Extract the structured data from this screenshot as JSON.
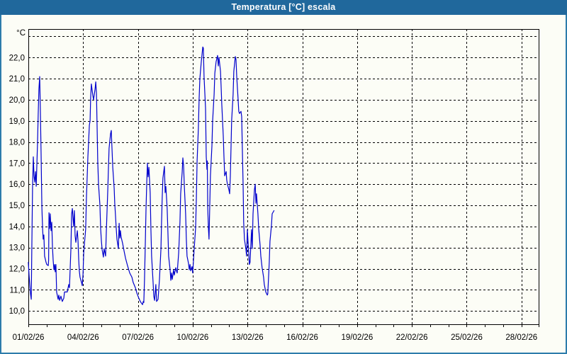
{
  "window": {
    "title": "Temperatura [°C] escala"
  },
  "colors": {
    "titlebar": "#20689c",
    "frame": "#2d7cab",
    "background": "#fcfdf6",
    "line": "#0000cc",
    "grid": "#000000",
    "axis": "#000000",
    "text": "#000000"
  },
  "chart_data": {
    "type": "line",
    "title": "Temperatura [°C] escala",
    "ylabel": "°C",
    "xlabel": "",
    "xlim": [
      1,
      28.94
    ],
    "ylim": [
      9.37,
      23.35
    ],
    "grid": "dashed",
    "legend": "none",
    "y_gridline_values": [
      10,
      11,
      12,
      13,
      14,
      15,
      16,
      17,
      18,
      19,
      20,
      21,
      22,
      23
    ],
    "y_ticks": [
      {
        "value": 10,
        "label": "10,0"
      },
      {
        "value": 11,
        "label": "11,0"
      },
      {
        "value": 12,
        "label": "12,0"
      },
      {
        "value": 13,
        "label": "13,0"
      },
      {
        "value": 14,
        "label": "14,0"
      },
      {
        "value": 15,
        "label": "15,0"
      },
      {
        "value": 16,
        "label": "16,0"
      },
      {
        "value": 17,
        "label": "17,0"
      },
      {
        "value": 18,
        "label": "18,0"
      },
      {
        "value": 19,
        "label": "19,0"
      },
      {
        "value": 20,
        "label": "20,0"
      },
      {
        "value": 21,
        "label": "21,0"
      },
      {
        "value": 22,
        "label": "22,0"
      }
    ],
    "x_ticks": [
      {
        "day": 1,
        "label": "01/02/26"
      },
      {
        "day": 4,
        "label": "04/02/26"
      },
      {
        "day": 7,
        "label": "07/02/26"
      },
      {
        "day": 10,
        "label": "10/02/26"
      },
      {
        "day": 13,
        "label": "13/02/26"
      },
      {
        "day": 16,
        "label": "16/02/26"
      },
      {
        "day": 19,
        "label": "19/02/26"
      },
      {
        "day": 22,
        "label": "22/02/26"
      },
      {
        "day": 25,
        "label": "25/02/26"
      },
      {
        "day": 28,
        "label": "28/02/26"
      }
    ],
    "x_minor_tick_days": [
      1,
      2,
      3,
      4,
      5,
      6,
      7,
      8,
      9,
      10,
      11,
      12,
      13,
      14,
      15,
      16,
      17,
      18,
      19,
      20,
      21,
      22,
      23,
      24,
      25,
      26,
      27,
      28
    ],
    "x_gridline_days": [
      4,
      7,
      10,
      13,
      16,
      19,
      22,
      25,
      28
    ],
    "series": [
      {
        "name": "Temperatura",
        "color": "#0000cc",
        "points": [
          [
            1.0,
            12.3
          ],
          [
            1.04,
            11.7
          ],
          [
            1.08,
            11.2
          ],
          [
            1.12,
            10.8
          ],
          [
            1.16,
            10.55
          ],
          [
            1.19,
            13.0
          ],
          [
            1.23,
            15.8
          ],
          [
            1.27,
            17.3
          ],
          [
            1.31,
            16.4
          ],
          [
            1.35,
            16.1
          ],
          [
            1.39,
            16.6
          ],
          [
            1.43,
            15.9
          ],
          [
            1.5,
            17.9
          ],
          [
            1.54,
            19.3
          ],
          [
            1.58,
            20.5
          ],
          [
            1.62,
            21.1
          ],
          [
            1.66,
            19.4
          ],
          [
            1.7,
            17.4
          ],
          [
            1.72,
            16.0
          ],
          [
            1.74,
            14.9
          ],
          [
            1.78,
            13.9
          ],
          [
            1.81,
            13.4
          ],
          [
            1.85,
            13.6
          ],
          [
            1.89,
            12.6
          ],
          [
            1.97,
            12.3
          ],
          [
            2.01,
            12.2
          ],
          [
            2.09,
            12.15
          ],
          [
            2.11,
            12.4
          ],
          [
            2.13,
            14.65
          ],
          [
            2.16,
            13.9
          ],
          [
            2.2,
            14.6
          ],
          [
            2.24,
            13.8
          ],
          [
            2.28,
            14.2
          ],
          [
            2.32,
            13.05
          ],
          [
            2.36,
            12.4
          ],
          [
            2.4,
            11.95
          ],
          [
            2.44,
            12.2
          ],
          [
            2.47,
            11.85
          ],
          [
            2.51,
            12.2
          ],
          [
            2.55,
            10.9
          ],
          [
            2.63,
            10.55
          ],
          [
            2.67,
            10.75
          ],
          [
            2.71,
            10.5
          ],
          [
            2.78,
            10.7
          ],
          [
            2.86,
            10.45
          ],
          [
            2.94,
            10.6
          ],
          [
            2.98,
            10.9
          ],
          [
            3.13,
            10.9
          ],
          [
            3.21,
            11.25
          ],
          [
            3.25,
            11.1
          ],
          [
            3.33,
            12.9
          ],
          [
            3.37,
            14.6
          ],
          [
            3.41,
            14.85
          ],
          [
            3.48,
            14.0
          ],
          [
            3.52,
            14.75
          ],
          [
            3.56,
            13.55
          ],
          [
            3.6,
            13.25
          ],
          [
            3.68,
            13.8
          ],
          [
            3.72,
            13.3
          ],
          [
            3.76,
            12.4
          ],
          [
            3.79,
            11.9
          ],
          [
            3.83,
            11.6
          ],
          [
            3.91,
            11.35
          ],
          [
            3.95,
            11.2
          ],
          [
            3.99,
            11.7
          ],
          [
            4.03,
            12.75
          ],
          [
            4.14,
            13.9
          ],
          [
            4.18,
            15.3
          ],
          [
            4.26,
            17.3
          ],
          [
            4.34,
            18.8
          ],
          [
            4.38,
            19.0
          ],
          [
            4.41,
            20.1
          ],
          [
            4.45,
            20.75
          ],
          [
            4.53,
            20.2
          ],
          [
            4.57,
            20.0
          ],
          [
            4.65,
            20.5
          ],
          [
            4.69,
            20.85
          ],
          [
            4.73,
            20.3
          ],
          [
            4.76,
            18.9
          ],
          [
            4.8,
            17.1
          ],
          [
            4.84,
            16.0
          ],
          [
            4.92,
            15.0
          ],
          [
            4.96,
            13.9
          ],
          [
            5.0,
            13.3
          ],
          [
            5.04,
            12.9
          ],
          [
            5.11,
            12.55
          ],
          [
            5.15,
            12.95
          ],
          [
            5.23,
            12.6
          ],
          [
            5.27,
            13.75
          ],
          [
            5.35,
            15.75
          ],
          [
            5.38,
            16.65
          ],
          [
            5.42,
            17.7
          ],
          [
            5.5,
            18.4
          ],
          [
            5.54,
            18.55
          ],
          [
            5.58,
            17.7
          ],
          [
            5.62,
            16.8
          ],
          [
            5.7,
            15.8
          ],
          [
            5.73,
            15.1
          ],
          [
            5.77,
            14.55
          ],
          [
            5.81,
            13.9
          ],
          [
            5.85,
            13.4
          ],
          [
            5.93,
            12.95
          ],
          [
            5.97,
            14.15
          ],
          [
            6.01,
            13.45
          ],
          [
            6.04,
            13.8
          ],
          [
            6.08,
            13.5
          ],
          [
            6.16,
            13.2
          ],
          [
            6.24,
            12.85
          ],
          [
            6.32,
            12.5
          ],
          [
            6.43,
            12.15
          ],
          [
            6.55,
            11.8
          ],
          [
            6.67,
            11.6
          ],
          [
            6.74,
            11.35
          ],
          [
            6.86,
            11.1
          ],
          [
            6.94,
            10.85
          ],
          [
            7.05,
            10.6
          ],
          [
            7.13,
            10.45
          ],
          [
            7.21,
            10.35
          ],
          [
            7.25,
            10.3
          ],
          [
            7.29,
            10.45
          ],
          [
            7.32,
            10.4
          ],
          [
            7.36,
            11.5
          ],
          [
            7.4,
            13.0
          ],
          [
            7.44,
            14.8
          ],
          [
            7.48,
            16.0
          ],
          [
            7.52,
            17.0
          ],
          [
            7.56,
            16.35
          ],
          [
            7.6,
            16.8
          ],
          [
            7.67,
            15.6
          ],
          [
            7.71,
            13.9
          ],
          [
            7.75,
            12.6
          ],
          [
            7.83,
            11.35
          ],
          [
            7.87,
            10.7
          ],
          [
            7.91,
            10.5
          ],
          [
            7.98,
            11.25
          ],
          [
            8.02,
            10.45
          ],
          [
            8.1,
            10.55
          ],
          [
            8.18,
            11.5
          ],
          [
            8.26,
            12.95
          ],
          [
            8.29,
            14.15
          ],
          [
            8.33,
            15.4
          ],
          [
            8.37,
            16.3
          ],
          [
            8.45,
            16.85
          ],
          [
            8.49,
            15.6
          ],
          [
            8.53,
            15.9
          ],
          [
            8.6,
            14.9
          ],
          [
            8.64,
            13.75
          ],
          [
            8.68,
            12.6
          ],
          [
            8.76,
            11.95
          ],
          [
            8.8,
            11.45
          ],
          [
            8.84,
            11.8
          ],
          [
            8.88,
            11.5
          ],
          [
            8.95,
            11.95
          ],
          [
            8.99,
            11.7
          ],
          [
            9.07,
            12.05
          ],
          [
            9.11,
            11.9
          ],
          [
            9.15,
            11.8
          ],
          [
            9.23,
            12.75
          ],
          [
            9.3,
            14.2
          ],
          [
            9.34,
            15.55
          ],
          [
            9.42,
            16.55
          ],
          [
            9.46,
            17.25
          ],
          [
            9.5,
            16.9
          ],
          [
            9.54,
            15.9
          ],
          [
            9.61,
            14.6
          ],
          [
            9.65,
            13.4
          ],
          [
            9.69,
            12.6
          ],
          [
            9.77,
            12.25
          ],
          [
            9.81,
            11.95
          ],
          [
            9.85,
            12.2
          ],
          [
            9.89,
            11.9
          ],
          [
            9.96,
            12.1
          ],
          [
            10.0,
            11.8
          ],
          [
            10.08,
            12.95
          ],
          [
            10.16,
            13.95
          ],
          [
            10.2,
            15.4
          ],
          [
            10.24,
            17.1
          ],
          [
            10.31,
            18.65
          ],
          [
            10.35,
            20.0
          ],
          [
            10.39,
            21.0
          ],
          [
            10.47,
            21.8
          ],
          [
            10.55,
            22.5
          ],
          [
            10.58,
            22.45
          ],
          [
            10.62,
            21.1
          ],
          [
            10.7,
            19.6
          ],
          [
            10.74,
            17.3
          ],
          [
            10.78,
            16.7
          ],
          [
            10.8,
            17.1
          ],
          [
            10.82,
            14.9
          ],
          [
            10.86,
            13.9
          ],
          [
            10.89,
            13.4
          ],
          [
            10.93,
            14.9
          ],
          [
            10.97,
            16.4
          ],
          [
            11.05,
            17.8
          ],
          [
            11.09,
            19.0
          ],
          [
            11.17,
            20.25
          ],
          [
            11.21,
            21.25
          ],
          [
            11.28,
            21.8
          ],
          [
            11.36,
            22.1
          ],
          [
            11.4,
            21.6
          ],
          [
            11.44,
            22.0
          ],
          [
            11.52,
            21.35
          ],
          [
            11.55,
            20.7
          ],
          [
            11.59,
            19.8
          ],
          [
            11.67,
            18.3
          ],
          [
            11.71,
            17.3
          ],
          [
            11.75,
            16.4
          ],
          [
            11.83,
            16.6
          ],
          [
            11.86,
            16.2
          ],
          [
            11.9,
            16.0
          ],
          [
            11.98,
            15.75
          ],
          [
            12.02,
            15.55
          ],
          [
            12.06,
            16.4
          ],
          [
            12.1,
            17.8
          ],
          [
            12.13,
            19.0
          ],
          [
            12.21,
            20.25
          ],
          [
            12.25,
            21.35
          ],
          [
            12.33,
            22.05
          ],
          [
            12.37,
            21.9
          ],
          [
            12.41,
            21.1
          ],
          [
            12.48,
            20.1
          ],
          [
            12.52,
            19.45
          ],
          [
            12.56,
            19.35
          ],
          [
            12.64,
            19.45
          ],
          [
            12.68,
            19.2
          ],
          [
            12.72,
            17.55
          ],
          [
            12.76,
            16.0
          ],
          [
            12.79,
            14.2
          ],
          [
            12.83,
            13.4
          ],
          [
            12.91,
            12.95
          ],
          [
            12.95,
            12.6
          ],
          [
            12.99,
            13.85
          ],
          [
            13.07,
            12.7
          ],
          [
            13.1,
            12.2
          ],
          [
            13.14,
            12.3
          ],
          [
            13.22,
            13.85
          ],
          [
            13.26,
            12.95
          ],
          [
            13.3,
            14.6
          ],
          [
            13.38,
            15.75
          ],
          [
            13.42,
            16.0
          ],
          [
            13.46,
            15.1
          ],
          [
            13.49,
            15.55
          ],
          [
            13.57,
            14.6
          ],
          [
            13.61,
            13.9
          ],
          [
            13.69,
            13.1
          ],
          [
            13.73,
            12.6
          ],
          [
            13.8,
            12.05
          ],
          [
            13.88,
            11.6
          ],
          [
            13.92,
            11.25
          ],
          [
            14.0,
            10.9
          ],
          [
            14.08,
            10.75
          ],
          [
            14.11,
            10.8
          ],
          [
            14.19,
            12.3
          ],
          [
            14.23,
            13.3
          ],
          [
            14.31,
            14.05
          ],
          [
            14.35,
            14.6
          ],
          [
            14.45,
            14.75
          ]
        ]
      }
    ]
  }
}
